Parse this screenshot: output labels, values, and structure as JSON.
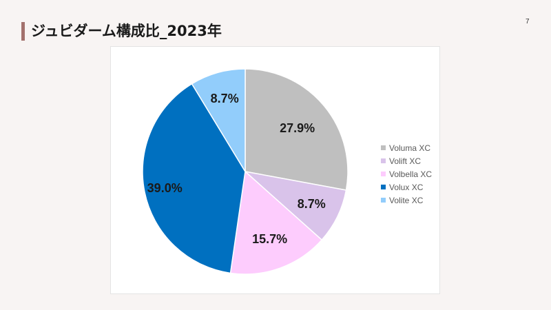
{
  "page": {
    "title": "ジュビダーム構成比_2023年",
    "page_number": "7"
  },
  "chart_data": {
    "type": "pie",
    "title": "",
    "start_angle": 0,
    "direction": "clockwise",
    "legend_position": "right",
    "categories": [
      "Voluma XC",
      "Volift XC",
      "Volbella XC",
      "Volux XC",
      "Volite XC"
    ],
    "values": [
      27.9,
      8.7,
      15.7,
      39.0,
      8.7
    ],
    "labels": [
      "27.9%",
      "8.7%",
      "15.7%",
      "39.0%",
      "8.7%"
    ],
    "colors": [
      "#bfbfbf",
      "#d9c3ea",
      "#fdccfd",
      "#0070c0",
      "#92cdfb"
    ]
  }
}
